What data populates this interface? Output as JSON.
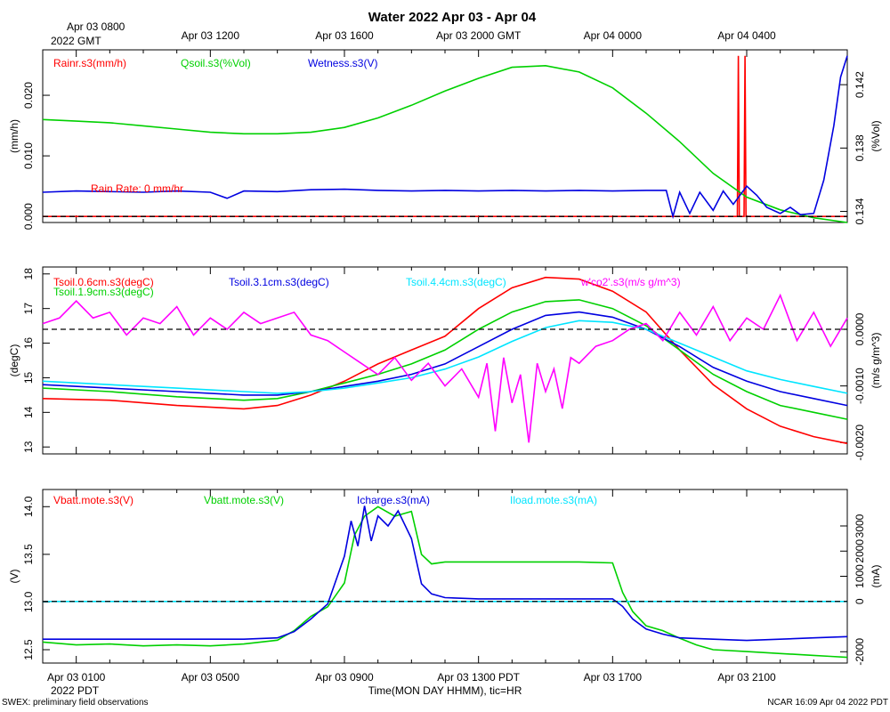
{
  "title": "Water 2022 Apr 03 - Apr 04",
  "top_time_labels": [
    "Apr 03 0800",
    "Apr 03 1200",
    "Apr 03 1600",
    "Apr 03 2000 GMT",
    "Apr 04 0000",
    "Apr 04 0400"
  ],
  "top_time_sublabel": "2022 GMT",
  "bottom_time_labels": [
    "Apr 03 0100",
    "Apr 03 0500",
    "Apr 03 0900",
    "Apr 03 1300 PDT",
    "Apr 03 1700",
    "Apr 03 2100"
  ],
  "bottom_time_sublabel": "2022 PDT",
  "xaxis_label": "Time(MON DAY HHMM), tic=HR",
  "footer_left": "SWEX: preliminary field observations",
  "footer_right": "NCAR 16:09 Apr 04 2022 PDT",
  "colors": {
    "red": "#ff0000",
    "green": "#00d000",
    "blue": "#0000e0",
    "cyan": "#00e5ff",
    "magenta": "#ff00ff"
  },
  "chart_data": [
    {
      "type": "line",
      "panel": "water",
      "x_range_hours_pdt": [
        "Apr 03 0000",
        "Apr 03 2359"
      ],
      "left_axis": {
        "label": "(mm/h)",
        "ticks": [
          "0.000",
          "0.010",
          "0.020"
        ],
        "range": [
          -0.001,
          0.0275
        ]
      },
      "right_axis": {
        "label": "(%Vol)",
        "ticks": [
          "0.134",
          "0.138",
          "0.142"
        ],
        "range": [
          0.1333,
          0.1442
        ]
      },
      "annotation": "Rain Rate: 0 mm/hr",
      "zero_line": true,
      "series": [
        {
          "name": "Rainr.s3(mm/h)",
          "color": "red",
          "axis": "left",
          "x": [
            0,
            20.72,
            20.75,
            20.78,
            20.92,
            20.95,
            20.98,
            24
          ],
          "values": [
            0,
            0,
            0.0265,
            0,
            0,
            0.0265,
            0,
            0
          ]
        },
        {
          "name": "Qsoil.s3(%Vol)",
          "color": "green",
          "axis": "right",
          "x": [
            0,
            1,
            2,
            3,
            4,
            5,
            6,
            7,
            8,
            9,
            10,
            11,
            12,
            13,
            14,
            15,
            16,
            17,
            18,
            19,
            20,
            21,
            22,
            23,
            24
          ],
          "values": [
            0.1398,
            0.1397,
            0.1396,
            0.1394,
            0.1392,
            0.139,
            0.1389,
            0.1389,
            0.139,
            0.1393,
            0.1399,
            0.1407,
            0.1416,
            0.1424,
            0.1431,
            0.1432,
            0.1428,
            0.1418,
            0.1402,
            0.1384,
            0.1364,
            0.1349,
            0.1341,
            0.1336,
            0.1333
          ]
        },
        {
          "name": "Wetness.s3(V)",
          "color": "blue",
          "axis": "left",
          "x": [
            0,
            1,
            2,
            3,
            4,
            5,
            5.5,
            6,
            7,
            8,
            9,
            10,
            11,
            12,
            13,
            14,
            15,
            16,
            17,
            18,
            18.6,
            18.8,
            19,
            19.3,
            19.6,
            20,
            20.3,
            20.6,
            21,
            21.3,
            21.6,
            22,
            22.3,
            22.6,
            23,
            23.3,
            23.6,
            23.8,
            24
          ],
          "values": [
            0.004,
            0.0042,
            0.0041,
            0.004,
            0.0042,
            0.004,
            0.003,
            0.0042,
            0.0041,
            0.0044,
            0.0045,
            0.0043,
            0.0042,
            0.0043,
            0.0042,
            0.0043,
            0.0042,
            0.0043,
            0.0042,
            0.0043,
            0.0043,
            0.0,
            0.004,
            0.0005,
            0.004,
            0.001,
            0.0042,
            0.002,
            0.005,
            0.0035,
            0.0015,
            0.0005,
            0.0015,
            0.0003,
            0.0005,
            0.006,
            0.015,
            0.023,
            0.0265
          ]
        }
      ]
    },
    {
      "type": "line",
      "panel": "soil temperature",
      "left_axis": {
        "label": "(degC)",
        "ticks": [
          "13",
          "14",
          "15",
          "16",
          "17",
          "18"
        ],
        "range": [
          12.8,
          18.2
        ]
      },
      "right_axis": {
        "label": "(m/s g/m^3)",
        "ticks": [
          "-0.0020",
          "-0.0010",
          "0.0000"
        ],
        "range": [
          -0.0022,
          0.0011
        ]
      },
      "zero_line": true,
      "series": [
        {
          "name": "Tsoil.0.6cm.s3(degC)",
          "color": "red",
          "axis": "left",
          "x": [
            0,
            2,
            4,
            6,
            7,
            8,
            9,
            10,
            11,
            12,
            13,
            14,
            15,
            16,
            17,
            18,
            19,
            20,
            21,
            22,
            23,
            24
          ],
          "values": [
            14.4,
            14.35,
            14.2,
            14.1,
            14.2,
            14.5,
            14.9,
            15.4,
            15.8,
            16.2,
            17.0,
            17.6,
            17.9,
            17.85,
            17.5,
            16.9,
            15.8,
            14.8,
            14.1,
            13.6,
            13.3,
            13.1
          ]
        },
        {
          "name": "Tsoil.1.9cm.s3(degC)",
          "color": "green",
          "axis": "left",
          "x": [
            0,
            2,
            4,
            6,
            7,
            8,
            9,
            10,
            11,
            12,
            13,
            14,
            15,
            16,
            17,
            18,
            19,
            20,
            21,
            22,
            23,
            24
          ],
          "values": [
            14.7,
            14.6,
            14.45,
            14.35,
            14.4,
            14.6,
            14.85,
            15.1,
            15.4,
            15.8,
            16.4,
            16.9,
            17.2,
            17.25,
            17.0,
            16.5,
            15.8,
            15.1,
            14.6,
            14.2,
            14.0,
            13.8
          ]
        },
        {
          "name": "Tsoil.3.1cm.s3(degC)",
          "color": "blue",
          "axis": "left",
          "x": [
            0,
            2,
            4,
            6,
            7,
            8,
            9,
            10,
            11,
            12,
            13,
            14,
            15,
            16,
            17,
            18,
            19,
            20,
            21,
            22,
            23,
            24
          ],
          "values": [
            14.8,
            14.7,
            14.6,
            14.5,
            14.5,
            14.6,
            14.75,
            14.9,
            15.1,
            15.4,
            15.9,
            16.4,
            16.8,
            16.9,
            16.75,
            16.4,
            15.9,
            15.3,
            14.9,
            14.6,
            14.4,
            14.2
          ]
        },
        {
          "name": "Tsoil.4.4cm.s3(degC)",
          "color": "cyan",
          "axis": "left",
          "x": [
            0,
            2,
            4,
            6,
            7,
            8,
            9,
            10,
            11,
            12,
            13,
            14,
            15,
            16,
            17,
            18,
            19,
            20,
            21,
            22,
            23,
            24
          ],
          "values": [
            14.9,
            14.8,
            14.7,
            14.6,
            14.55,
            14.6,
            14.7,
            14.85,
            15.0,
            15.25,
            15.6,
            16.05,
            16.45,
            16.65,
            16.6,
            16.4,
            16.0,
            15.6,
            15.2,
            14.95,
            14.75,
            14.55
          ]
        },
        {
          "name": "w'co2'.s3(m/s g/m^3)",
          "color": "magenta",
          "axis": "right",
          "x": [
            0,
            0.5,
            1,
            1.5,
            2,
            2.5,
            3,
            3.5,
            4,
            4.5,
            5,
            5.5,
            6,
            6.5,
            7,
            7.5,
            8,
            8.5,
            9,
            9.5,
            10,
            10.5,
            11,
            11.5,
            12,
            12.5,
            13,
            13.25,
            13.5,
            13.75,
            14,
            14.25,
            14.5,
            14.75,
            15,
            15.25,
            15.5,
            15.75,
            16,
            16.5,
            17,
            17.5,
            18,
            18.5,
            19,
            19.5,
            20,
            20.5,
            21,
            21.5,
            22,
            22.5,
            23,
            23.5,
            24
          ],
          "values": [
            0.0001,
            0.0002,
            0.0005,
            0.0002,
            0.0003,
            -0.0001,
            0.0002,
            0.0001,
            0.0004,
            -0.0001,
            0.0002,
            0.0,
            0.0003,
            0.0001,
            0.0002,
            0.0003,
            -0.0001,
            -0.0002,
            -0.0004,
            -0.0006,
            -0.0008,
            -0.0005,
            -0.0009,
            -0.0006,
            -0.001,
            -0.0007,
            -0.0012,
            -0.0006,
            -0.0018,
            -0.0005,
            -0.0013,
            -0.0008,
            -0.002,
            -0.0006,
            -0.0011,
            -0.0007,
            -0.0014,
            -0.0005,
            -0.0006,
            -0.0003,
            -0.0002,
            0.0,
            0.0001,
            -0.0002,
            0.0003,
            -0.0001,
            0.0004,
            -0.0002,
            0.0002,
            0.0,
            0.0006,
            -0.0002,
            0.0003,
            -0.0003,
            0.0002
          ]
        }
      ]
    },
    {
      "type": "line",
      "panel": "power",
      "left_axis": {
        "label": "(V)",
        "ticks": [
          "12.5",
          "13.0",
          "13.5",
          "14.0"
        ],
        "range": [
          12.36,
          14.18
        ]
      },
      "right_axis": {
        "label": "(mA)",
        "ticks": [
          "-2000",
          "0",
          "1000",
          "2000",
          "3000"
        ],
        "range": [
          -2450,
          4450
        ]
      },
      "zero_line": true,
      "series": [
        {
          "name": "Vbatt.mote.s3(V)",
          "color": "red",
          "axis": "left",
          "x": [],
          "values": []
        },
        {
          "name": "Vbatt.mote.s3(V)",
          "color": "green",
          "axis": "left",
          "x": [
            0,
            1,
            2,
            3,
            4,
            5,
            6,
            7,
            7.5,
            8,
            8.5,
            9,
            9.3,
            9.6,
            10,
            10.5,
            11,
            11.3,
            11.6,
            12,
            13,
            14,
            15,
            16,
            17,
            17.3,
            17.6,
            18,
            18.5,
            19,
            19.5,
            20,
            21,
            22,
            23,
            23.5,
            24
          ],
          "values": [
            12.58,
            12.55,
            12.56,
            12.54,
            12.55,
            12.54,
            12.56,
            12.6,
            12.7,
            12.85,
            12.95,
            13.2,
            13.7,
            13.9,
            14.0,
            13.9,
            13.95,
            13.5,
            13.4,
            13.42,
            13.42,
            13.42,
            13.42,
            13.42,
            13.41,
            13.1,
            12.9,
            12.75,
            12.7,
            12.62,
            12.55,
            12.5,
            12.48,
            12.46,
            12.44,
            12.43,
            12.42
          ]
        },
        {
          "name": "Icharge.s3(mA)",
          "color": "blue",
          "axis": "right",
          "x": [
            0,
            1,
            2,
            3,
            4,
            5,
            6,
            7,
            7.5,
            8,
            8.5,
            9,
            9.2,
            9.4,
            9.6,
            9.8,
            10,
            10.3,
            10.6,
            11,
            11.3,
            11.6,
            12,
            13,
            14,
            15,
            16,
            17,
            17.3,
            17.6,
            18,
            18.5,
            19,
            20,
            21,
            22,
            23,
            24
          ],
          "values": [
            -1500,
            -1500,
            -1500,
            -1500,
            -1500,
            -1500,
            -1500,
            -1450,
            -1200,
            -700,
            -100,
            1800,
            3200,
            2200,
            3800,
            2400,
            3400,
            3000,
            3600,
            2500,
            700,
            300,
            150,
            100,
            100,
            100,
            100,
            100,
            -200,
            -700,
            -1100,
            -1300,
            -1450,
            -1500,
            -1550,
            -1500,
            -1450,
            -1400
          ]
        },
        {
          "name": "Iload.mote.s3(mA)",
          "color": "cyan",
          "axis": "right",
          "x": [
            0,
            24
          ],
          "values": [
            0,
            0
          ]
        }
      ]
    }
  ]
}
